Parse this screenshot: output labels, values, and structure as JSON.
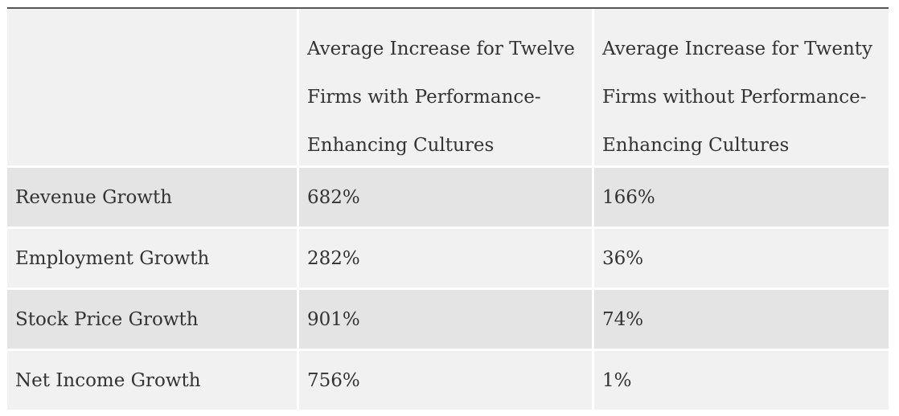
{
  "table": {
    "headers": [
      "",
      "Average Increase for Twelve Firms with Performance-Enhancing Cultures",
      "Average Increase for Twenty Firms without Performance-Enhancing Cultures"
    ],
    "header_lines": {
      "col1": [
        "Average Increase for Twelve",
        "Firms with Performance-",
        "Enhancing Cultures"
      ],
      "col2": [
        "Average Increase for Twenty",
        "Firms without Performance-",
        "Enhancing Cultures"
      ]
    },
    "rows": [
      {
        "label": "Revenue Growth",
        "with": "682%",
        "without": "166%"
      },
      {
        "label": "Employment Growth",
        "with": "282%",
        "without": "36%"
      },
      {
        "label": "Stock Price Growth",
        "with": "901%",
        "without": "74%"
      },
      {
        "label": "Net Income Growth",
        "with": "756%",
        "without": "1%"
      }
    ]
  },
  "colors": {
    "header_bg": "#f1f1f1",
    "row_shaded": "#e4e4e4",
    "row_plain": "#f1f1f1",
    "text": "#333333",
    "top_rule": "#555555"
  }
}
